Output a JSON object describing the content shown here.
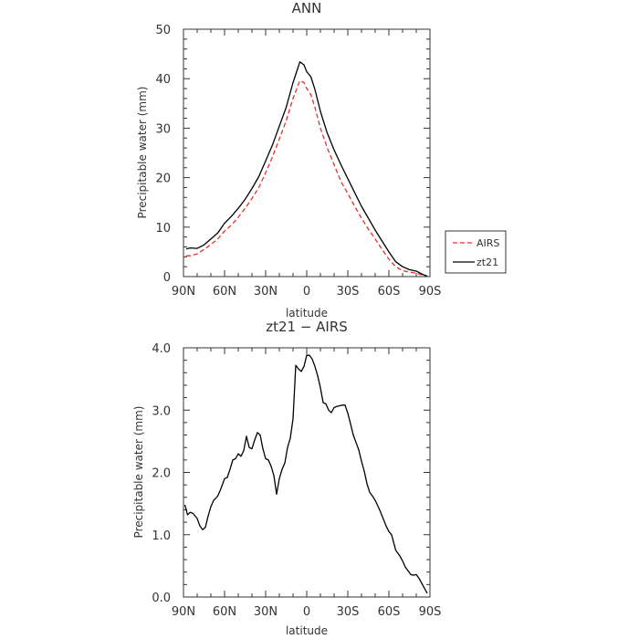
{
  "chart_data": [
    {
      "type": "line",
      "title": "ANN",
      "xlabel": "latitude",
      "ylabel": "Precipitable water (mm)",
      "xlim": [
        90,
        -90
      ],
      "ylim": [
        0,
        50
      ],
      "x_ticks": [
        {
          "value": 90,
          "label": "90N"
        },
        {
          "value": 60,
          "label": "60N"
        },
        {
          "value": 30,
          "label": "30N"
        },
        {
          "value": 0,
          "label": "0"
        },
        {
          "value": -30,
          "label": "30S"
        },
        {
          "value": -60,
          "label": "60S"
        },
        {
          "value": -90,
          "label": "90S"
        }
      ],
      "y_ticks": [
        "0",
        "10",
        "20",
        "30",
        "40",
        "50"
      ],
      "legend_position": "outside-right",
      "series": [
        {
          "name": "AIRS",
          "color": "#e8302a",
          "dash": "dashed",
          "x": [
            88,
            85,
            80,
            75,
            70,
            65,
            60,
            55,
            50,
            45,
            40,
            35,
            30,
            25,
            20,
            15,
            10,
            5,
            2,
            0,
            -3,
            -6,
            -10,
            -15,
            -20,
            -25,
            -30,
            -35,
            -40,
            -45,
            -50,
            -55,
            -60,
            -65,
            -70,
            -75,
            -80,
            -85,
            -88
          ],
          "y": [
            4.2,
            4.2,
            4.6,
            5.5,
            6.5,
            7.6,
            9.2,
            10.4,
            12.0,
            13.8,
            15.8,
            18.0,
            21.0,
            24.2,
            27.8,
            31.5,
            36.0,
            39.6,
            39.2,
            38.0,
            36.8,
            34.2,
            30.0,
            26.0,
            22.6,
            19.2,
            16.8,
            14.2,
            11.8,
            9.6,
            7.6,
            5.5,
            3.5,
            2.0,
            1.2,
            0.9,
            0.7,
            0.3,
            0.1
          ]
        },
        {
          "name": "zt21",
          "color": "#000000",
          "dash": "solid",
          "x": [
            88,
            85,
            80,
            75,
            70,
            65,
            60,
            55,
            50,
            45,
            40,
            35,
            30,
            25,
            20,
            15,
            10,
            5,
            2,
            0,
            -3,
            -6,
            -10,
            -15,
            -20,
            -25,
            -30,
            -35,
            -40,
            -45,
            -50,
            -55,
            -60,
            -65,
            -70,
            -75,
            -80,
            -85,
            -88
          ],
          "y": [
            5.6,
            5.8,
            5.7,
            6.4,
            7.6,
            8.8,
            10.8,
            12.2,
            13.8,
            15.6,
            17.8,
            20.2,
            23.4,
            26.6,
            30.4,
            34.2,
            39.2,
            43.4,
            42.8,
            41.4,
            40.4,
            37.8,
            33.4,
            29.0,
            25.6,
            22.6,
            19.8,
            17.0,
            14.2,
            11.8,
            9.4,
            7.2,
            5.0,
            3.0,
            2.0,
            1.4,
            1.1,
            0.4,
            0.1
          ]
        }
      ]
    },
    {
      "type": "line",
      "title": "zt21 − AIRS",
      "xlabel": "latitude",
      "ylabel": "Precipitable water (mm)",
      "xlim": [
        90,
        -90
      ],
      "ylim": [
        0,
        4
      ],
      "x_ticks": [
        {
          "value": 90,
          "label": "90N"
        },
        {
          "value": 60,
          "label": "60N"
        },
        {
          "value": 30,
          "label": "30N"
        },
        {
          "value": 0,
          "label": "0"
        },
        {
          "value": -30,
          "label": "30S"
        },
        {
          "value": -60,
          "label": "60S"
        },
        {
          "value": -90,
          "label": "90S"
        }
      ],
      "y_ticks": [
        "0.0",
        "1.0",
        "2.0",
        "3.0",
        "4.0"
      ],
      "series": [
        {
          "color": "#000000",
          "dash": "solid",
          "x": [
            89,
            87,
            85,
            83,
            80,
            78,
            76,
            74,
            72,
            70,
            68,
            65,
            63,
            60,
            58,
            56,
            54,
            52,
            50,
            48,
            46,
            44,
            42,
            40,
            38,
            36,
            34,
            32,
            30,
            28,
            26,
            24,
            22,
            20,
            18,
            16,
            14,
            12,
            10,
            8,
            6,
            4,
            2,
            0,
            -2,
            -4,
            -6,
            -8,
            -10,
            -12,
            -14,
            -16,
            -18,
            -20,
            -22,
            -24,
            -26,
            -28,
            -30,
            -32,
            -34,
            -36,
            -38,
            -40,
            -42,
            -44,
            -46,
            -48,
            -50,
            -52,
            -54,
            -56,
            -58,
            -60,
            -62,
            -65,
            -68,
            -70,
            -72,
            -74,
            -76,
            -78,
            -80,
            -82,
            -85,
            -88
          ],
          "y": [
            1.48,
            1.32,
            1.36,
            1.34,
            1.26,
            1.14,
            1.08,
            1.12,
            1.3,
            1.45,
            1.55,
            1.62,
            1.72,
            1.9,
            1.92,
            2.05,
            2.2,
            2.22,
            2.3,
            2.26,
            2.35,
            2.58,
            2.4,
            2.38,
            2.52,
            2.64,
            2.6,
            2.38,
            2.22,
            2.2,
            2.1,
            1.95,
            1.65,
            1.9,
            2.05,
            2.15,
            2.4,
            2.55,
            2.86,
            3.72,
            3.66,
            3.62,
            3.7,
            3.88,
            3.88,
            3.82,
            3.7,
            3.55,
            3.36,
            3.12,
            3.1,
            3.0,
            2.96,
            3.04,
            3.06,
            3.07,
            3.08,
            3.08,
            2.95,
            2.78,
            2.6,
            2.48,
            2.36,
            2.18,
            2.02,
            1.82,
            1.68,
            1.62,
            1.55,
            1.46,
            1.36,
            1.25,
            1.14,
            1.05,
            1.0,
            0.75,
            0.66,
            0.58,
            0.48,
            0.42,
            0.36,
            0.35,
            0.36,
            0.3,
            0.18,
            0.06
          ]
        }
      ]
    }
  ]
}
